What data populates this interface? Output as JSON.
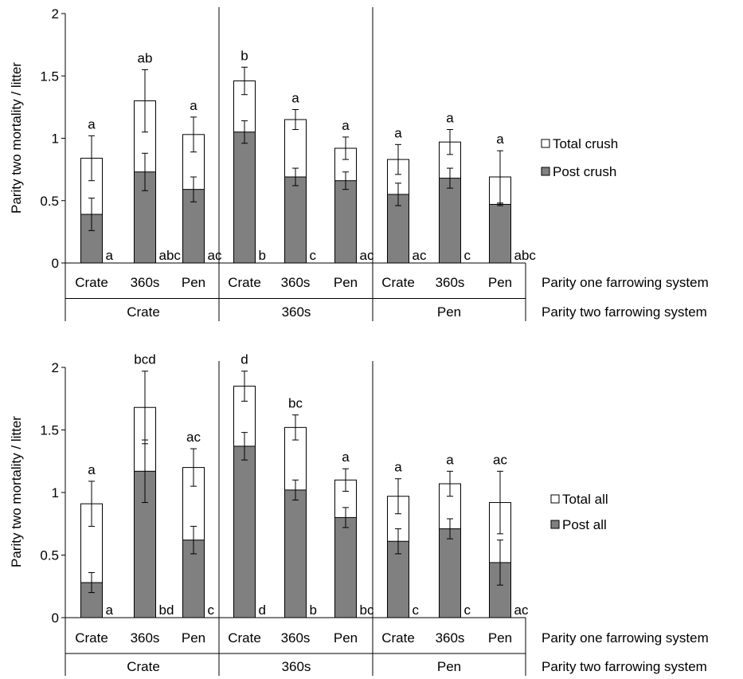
{
  "chart_data": [
    {
      "type": "bar",
      "stacked": "overlay",
      "ylabel": "Parity two mortality / litter",
      "ylim": [
        0,
        2
      ],
      "yticks": [
        "0",
        "0.5",
        "1",
        "1.5",
        "2"
      ],
      "grid": false,
      "legend_position": "right",
      "categories": [
        "Crate",
        "360s",
        "Pen",
        "Crate",
        "360s",
        "Pen",
        "Crate",
        "360s",
        "Pen"
      ],
      "groups": [
        "Crate",
        "360s",
        "Pen"
      ],
      "category_axis_title": "Parity one farrowing system",
      "group_axis_title": "Parity two farrowing system",
      "series": [
        {
          "name": "Total crush",
          "color": "#ffffff",
          "values": [
            0.84,
            1.3,
            1.03,
            1.46,
            1.15,
            0.92,
            0.83,
            0.97,
            0.69
          ],
          "errors": [
            0.18,
            0.25,
            0.14,
            0.11,
            0.08,
            0.09,
            0.12,
            0.1,
            0.21
          ],
          "letters": [
            "a",
            "ab",
            "a",
            "b",
            "a",
            "a",
            "a",
            "a",
            "a"
          ]
        },
        {
          "name": "Post crush",
          "color": "#808080",
          "values": [
            0.39,
            0.73,
            0.59,
            1.05,
            0.69,
            0.66,
            0.55,
            0.68,
            0.47
          ],
          "errors": [
            0.13,
            0.15,
            0.1,
            0.09,
            0.07,
            0.07,
            0.09,
            0.08,
            0.01
          ],
          "letters": [
            "a",
            "abc",
            "ac",
            "b",
            "c",
            "ac",
            "ac",
            "c",
            "abc"
          ]
        }
      ]
    },
    {
      "type": "bar",
      "stacked": "overlay",
      "ylabel": "Parity two mortality / litter",
      "ylim": [
        0,
        2
      ],
      "yticks": [
        "0",
        "0.5",
        "1",
        "1.5",
        "2"
      ],
      "grid": false,
      "legend_position": "right",
      "categories": [
        "Crate",
        "360s",
        "Pen",
        "Crate",
        "360s",
        "Pen",
        "Crate",
        "360s",
        "Pen"
      ],
      "groups": [
        "Crate",
        "360s",
        "Pen"
      ],
      "category_axis_title": "Parity one farrowing system",
      "group_axis_title": "Parity two farrowing system",
      "series": [
        {
          "name": "Total all",
          "color": "#ffffff",
          "values": [
            0.91,
            1.68,
            1.2,
            1.85,
            1.52,
            1.1,
            0.97,
            1.07,
            0.92
          ],
          "errors": [
            0.18,
            0.29,
            0.15,
            0.12,
            0.1,
            0.09,
            0.14,
            0.1,
            0.25
          ],
          "letters": [
            "a",
            "bcd",
            "ac",
            "d",
            "bc",
            "a",
            "a",
            "a",
            "ac"
          ]
        },
        {
          "name": "Post all",
          "color": "#808080",
          "values": [
            0.28,
            1.17,
            0.62,
            1.37,
            1.02,
            0.8,
            0.61,
            0.71,
            0.44
          ],
          "errors": [
            0.08,
            0.25,
            0.11,
            0.11,
            0.08,
            0.08,
            0.1,
            0.08,
            0.18
          ],
          "letters": [
            "a",
            "bd",
            "c",
            "d",
            "b",
            "bc",
            "c",
            "c",
            "ac"
          ]
        }
      ]
    }
  ]
}
